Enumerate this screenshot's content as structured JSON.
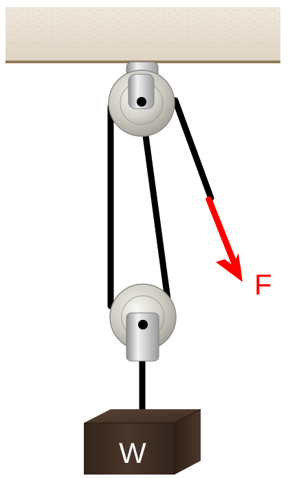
{
  "diagram": {
    "force_label": "F",
    "weight_label": "W",
    "colors": {
      "ceiling": "#e6ddd0",
      "ceiling_edge": "#8f7a58",
      "rope": "#000000",
      "force": "#ff0000",
      "block": "#3e2b21",
      "pulley": "#b8b6ad",
      "label_on_block": "#ffffff"
    },
    "icons": {
      "ceiling": "ceiling-beam",
      "fixed_pulley": "fixed-pulley",
      "movable_pulley": "movable-pulley",
      "force_arrow": "red-arrow",
      "weight_block": "wooden-block"
    }
  }
}
